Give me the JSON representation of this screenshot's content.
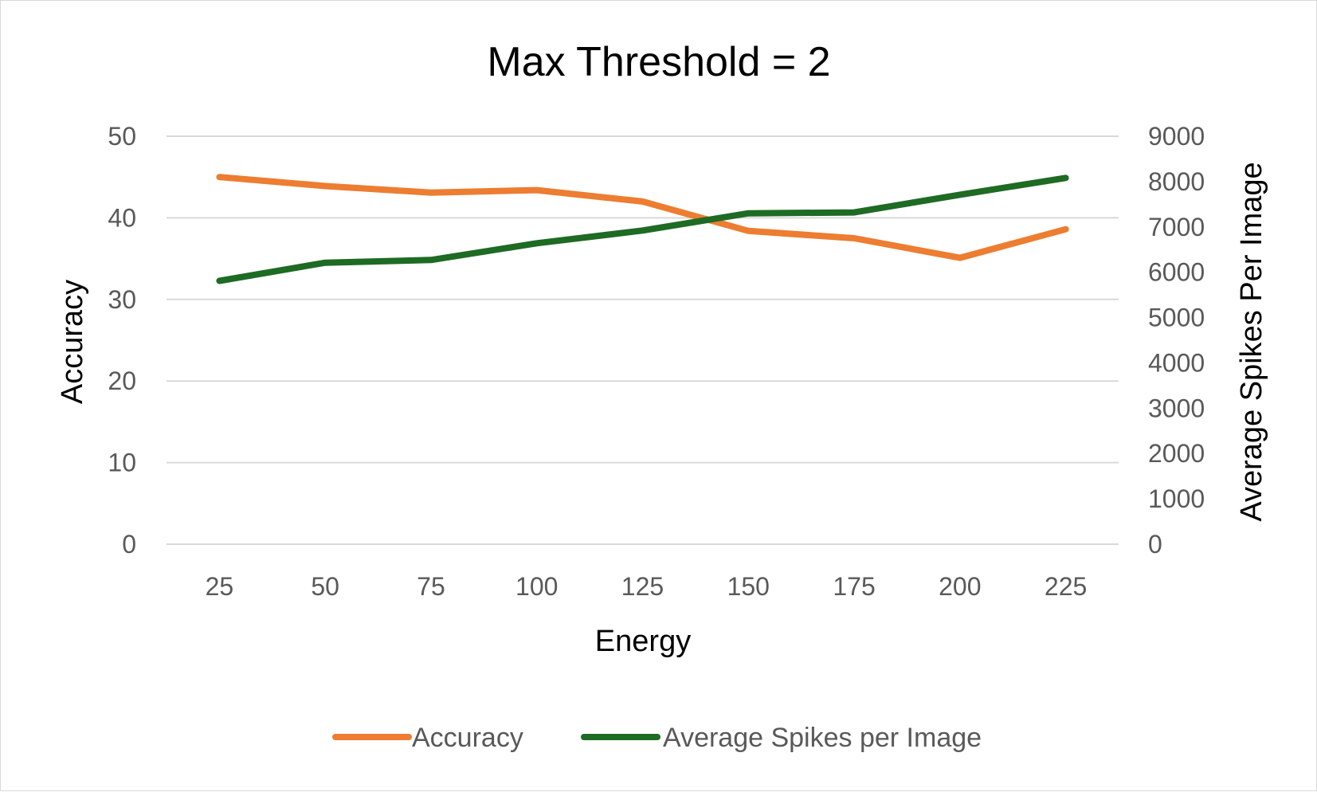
{
  "chart_data": {
    "type": "line",
    "title": "Max Threshold = 2",
    "xlabel": "Energy",
    "ylabel": "Accuracy",
    "y2label": "Average Spikes Per Image",
    "categories": [
      "25",
      "50",
      "75",
      "100",
      "125",
      "150",
      "175",
      "200",
      "225"
    ],
    "ylim": [
      0,
      50
    ],
    "yticks": [
      "0",
      "10",
      "20",
      "30",
      "40",
      "50"
    ],
    "y2lim": [
      0,
      9000
    ],
    "y2ticks": [
      "0",
      "1000",
      "2000",
      "3000",
      "4000",
      "5000",
      "6000",
      "7000",
      "8000",
      "9000"
    ],
    "grid": true,
    "legend_position": "bottom",
    "series": [
      {
        "name": "Accuracy",
        "axis": "left",
        "color": "#ED7D31",
        "values": [
          45.0,
          43.9,
          43.1,
          43.4,
          42.0,
          38.4,
          37.5,
          35.1,
          38.6
        ]
      },
      {
        "name": "Average Spikes per Image",
        "axis": "right",
        "color": "#1E6B24",
        "values": [
          5810,
          6210,
          6270,
          6640,
          6920,
          7300,
          7320,
          7710,
          8080
        ]
      }
    ]
  }
}
